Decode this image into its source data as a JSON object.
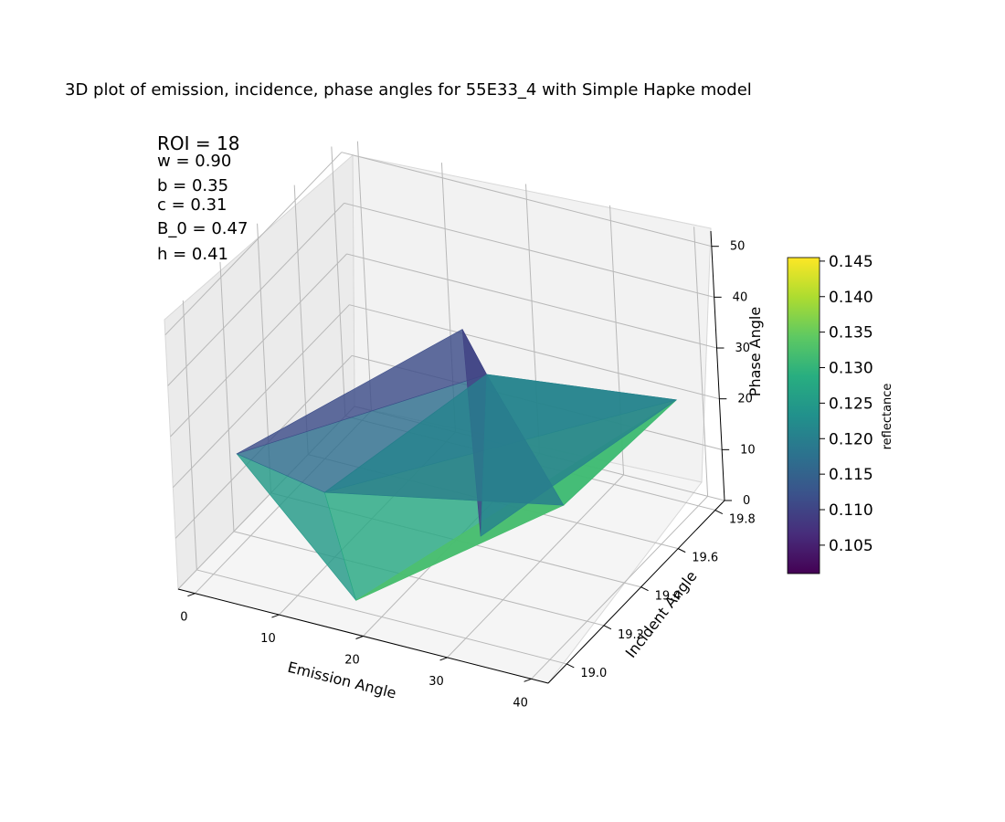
{
  "chart_data": {
    "type": "surface3d",
    "title": "3D plot of emission, incidence, phase angles for 55E33_4 with Simple Hapke model",
    "annotations": {
      "roi": "ROI = 18",
      "w": "w = 0.90",
      "b": "b = 0.35",
      "c": "c = 0.31",
      "b0": "B_0 = 0.47",
      "h": "h = 0.41"
    },
    "x_axis": {
      "label": "Emission Angle",
      "ticks": [
        "0",
        "10",
        "20",
        "30",
        "40"
      ]
    },
    "y_axis": {
      "label": "Incident Angle",
      "ticks": [
        "19.0",
        "19.2",
        "19.4",
        "19.6",
        "19.8"
      ]
    },
    "z_axis": {
      "label": "Phase Angle",
      "ticks": [
        "0",
        "10",
        "20",
        "30",
        "40",
        "50"
      ]
    },
    "colorbar": {
      "label": "reflectance",
      "colormap": "viridis",
      "range": [
        0.101,
        0.1455
      ],
      "ticks": [
        "0.105",
        "0.110",
        "0.115",
        "0.120",
        "0.125",
        "0.130",
        "0.135",
        "0.140",
        "0.145"
      ]
    },
    "surface_vertices": [
      {
        "emission": 0,
        "incidence": 19.15,
        "phase": 18,
        "reflectance": 0.12
      },
      {
        "emission": 8,
        "incidence": 19.25,
        "phase": 10,
        "reflectance": 0.125
      },
      {
        "emission": 17,
        "incidence": 19.0,
        "phase": 2,
        "reflectance": 0.13
      },
      {
        "emission": 32,
        "incidence": 19.45,
        "phase": 10,
        "reflectance": 0.128
      },
      {
        "emission": 38,
        "incidence": 19.8,
        "phase": 20,
        "reflectance": 0.14
      },
      {
        "emission": 20,
        "incidence": 19.6,
        "phase": 25,
        "reflectance": 0.106
      },
      {
        "emission": 15,
        "incidence": 19.7,
        "phase": 28,
        "reflectance": 0.108
      },
      {
        "emission": 23,
        "incidence": 19.4,
        "phase": 2,
        "reflectance": 0.115
      }
    ],
    "grid": true
  }
}
